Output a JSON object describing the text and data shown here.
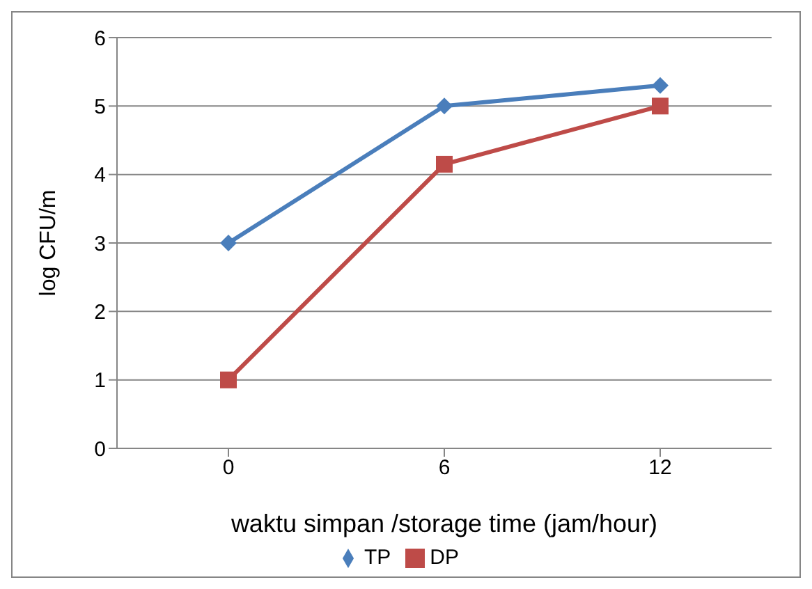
{
  "chart_data": {
    "type": "line",
    "xlabel": "waktu simpan /storage time (jam/hour)",
    "ylabel": "log CFU/m",
    "categories": [
      "0",
      "6",
      "12"
    ],
    "series": [
      {
        "name": "TP",
        "color": "#4a7ebb",
        "values": [
          3,
          5,
          5.3
        ],
        "marker": "diamond"
      },
      {
        "name": "DP",
        "color": "#be4b48",
        "values": [
          1,
          4.15,
          5
        ],
        "marker": "square"
      }
    ],
    "ylim": [
      0,
      6
    ],
    "yticks": [
      0,
      1,
      2,
      3,
      4,
      5,
      6
    ],
    "grid": "y",
    "legend": "bottom",
    "line_style": "solid"
  }
}
